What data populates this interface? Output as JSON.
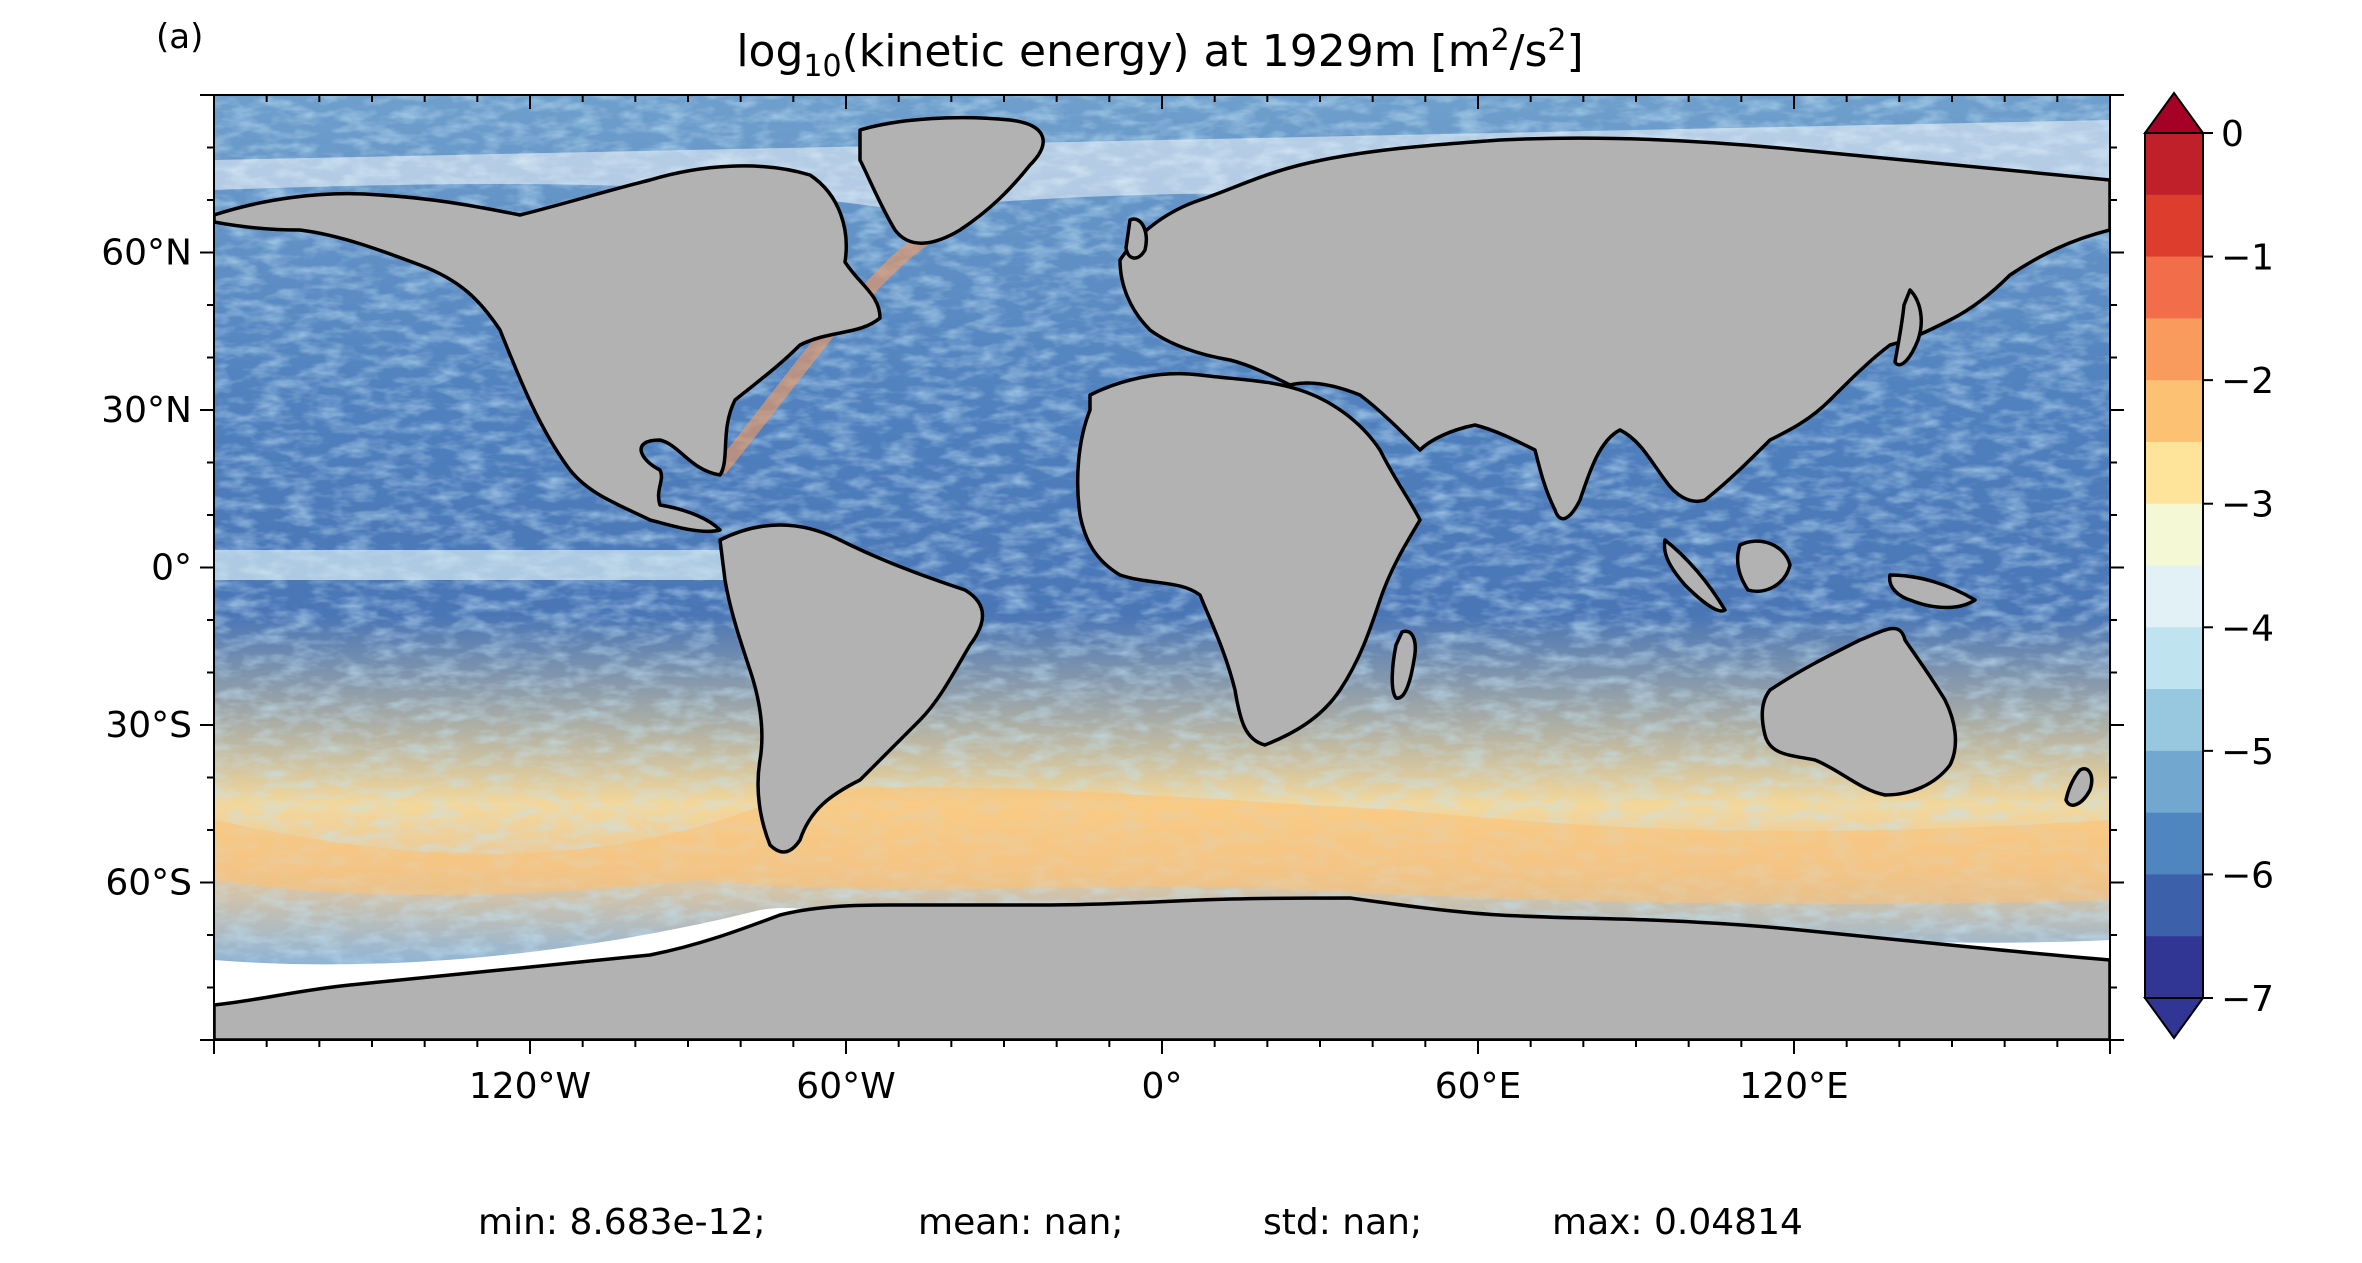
{
  "panel_label": "(a)",
  "title": {
    "prefix": "log",
    "prefix_sub": "10",
    "main": "(kinetic energy) at 1929m [m",
    "sup1": "2",
    "mid": "/s",
    "sup2": "2",
    "suffix": "]"
  },
  "map": {
    "projection": "plate carree",
    "land_color": "#b2b2b2",
    "ocean_missing_color": "#ffffff",
    "coastline_color": "#000000",
    "lon_ticks": [
      {
        "lon": -120,
        "label": "120°W"
      },
      {
        "lon": -60,
        "label": "60°W"
      },
      {
        "lon": 0,
        "label": "0°"
      },
      {
        "lon": 60,
        "label": "60°E"
      },
      {
        "lon": 120,
        "label": "120°E"
      }
    ],
    "lat_ticks": [
      {
        "lat": 60,
        "label": "60°N"
      },
      {
        "lat": 30,
        "label": "30°N"
      },
      {
        "lat": 0,
        "label": "0°"
      },
      {
        "lat": -30,
        "label": "30°S"
      },
      {
        "lat": -60,
        "label": "60°S"
      }
    ]
  },
  "colorbar": {
    "vmin": -7,
    "vmax": 0,
    "ticks": [
      {
        "value": 0,
        "label": "0"
      },
      {
        "value": -1,
        "label": "−1"
      },
      {
        "value": -2,
        "label": "−2"
      },
      {
        "value": -3,
        "label": "−3"
      },
      {
        "value": -4,
        "label": "−4"
      },
      {
        "value": -5,
        "label": "−5"
      },
      {
        "value": -6,
        "label": "−6"
      },
      {
        "value": -7,
        "label": "−7"
      }
    ],
    "levels_top_to_bottom": [
      "#c0202a",
      "#dc3d2d",
      "#f26d4a",
      "#f99b5c",
      "#fdc173",
      "#fee39a",
      "#f5f8d5",
      "#e1f1f5",
      "#bfe3ef",
      "#98c8e0",
      "#72a8cf",
      "#4f86bf",
      "#3c60a9",
      "#313695"
    ],
    "over_color": "#a50026",
    "under_color": "#313695",
    "extend": "both"
  },
  "stats": {
    "min": "min: 8.683e-12;",
    "mean": "mean: nan;",
    "std": "std: nan;",
    "max": "max: 0.04814"
  }
}
